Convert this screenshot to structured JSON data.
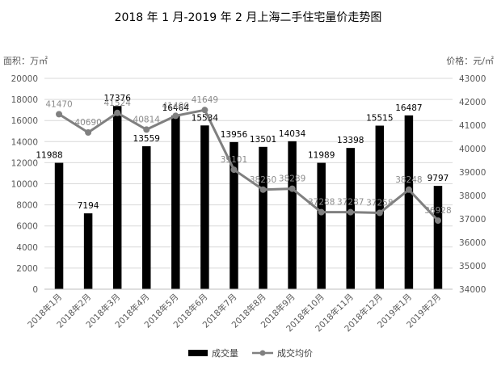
{
  "chart_data": {
    "type": "bar",
    "title": "2018 年 1 月-2019 年 2 月上海二手住宅量价走势图",
    "categories": [
      "2018年1月",
      "2018年2月",
      "2018年3月",
      "2018年4月",
      "2018年5月",
      "2018年6月",
      "2018年7月",
      "2018年8月",
      "2018年9月",
      "2018年10月",
      "2018年11月",
      "2018年12月",
      "2019年1月",
      "2019年2月"
    ],
    "y_left": {
      "label": "面积：万㎡",
      "min": 0,
      "max": 20000,
      "step": 2000
    },
    "y_right": {
      "label": "价格：元/㎡",
      "min": 34000,
      "max": 43000,
      "step": 1000
    },
    "series": [
      {
        "name": "成交量",
        "type": "bar",
        "axis": "left",
        "color": "#000000",
        "values": [
          11988,
          7194,
          17376,
          13559,
          16464,
          15534,
          13956,
          13501,
          14034,
          11989,
          13398,
          15515,
          16487,
          9797
        ]
      },
      {
        "name": "成交均价",
        "type": "line",
        "axis": "right",
        "color": "#808080",
        "values": [
          41470,
          40690,
          41524,
          40814,
          41400,
          41649,
          39101,
          38250,
          38289,
          37288,
          37287,
          37258,
          38248,
          36928
        ]
      }
    ],
    "legend_position": "bottom",
    "grid": true
  }
}
